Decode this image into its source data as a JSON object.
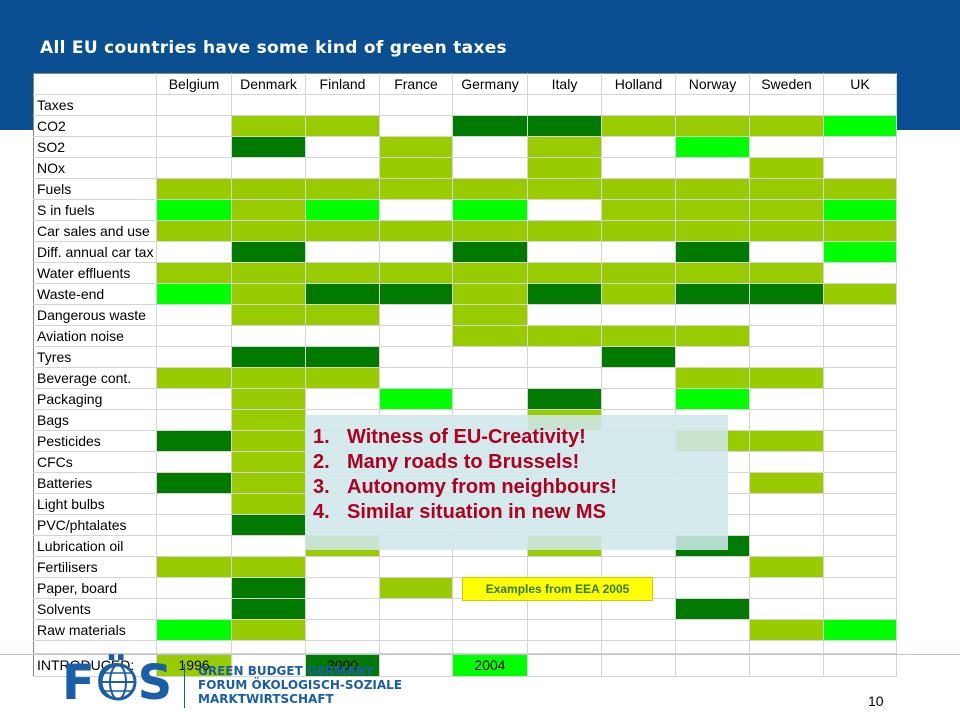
{
  "slide": {
    "title": "All EU countries have some kind of green taxes",
    "page_number": "10"
  },
  "colors": {
    "light_green": "#99cc00",
    "dark_green": "#007a00",
    "bright_green": "#00ff00",
    "header_blue": "#0b4f93",
    "overlay_text_red": "#b00020"
  },
  "table": {
    "corner_label": "",
    "countries": [
      "Belgium",
      "Denmark",
      "Finland",
      "France",
      "Germany",
      "Italy",
      "Holland",
      "Norway",
      "Sweden",
      "UK"
    ],
    "section_label": "Taxes",
    "legend_codes": {
      "0": "none",
      "1": "light green",
      "2": "dark green",
      "3": "bright green"
    },
    "rows": [
      {
        "label": "CO2",
        "cells": [
          0,
          1,
          1,
          0,
          2,
          2,
          1,
          1,
          1,
          3
        ]
      },
      {
        "label": "SO2",
        "cells": [
          0,
          2,
          0,
          1,
          0,
          1,
          0,
          3,
          0,
          0
        ]
      },
      {
        "label": "NOx",
        "cells": [
          0,
          0,
          0,
          1,
          0,
          1,
          0,
          0,
          1,
          0
        ]
      },
      {
        "label": "Fuels",
        "cells": [
          1,
          1,
          1,
          1,
          1,
          1,
          1,
          1,
          1,
          1
        ]
      },
      {
        "label": "S in fuels",
        "cells": [
          3,
          1,
          3,
          0,
          3,
          0,
          1,
          1,
          1,
          3
        ]
      },
      {
        "label": "Car sales and use",
        "cells": [
          1,
          1,
          1,
          1,
          1,
          1,
          1,
          1,
          1,
          1
        ]
      },
      {
        "label": "Diff. annual car tax",
        "cells": [
          0,
          2,
          0,
          0,
          2,
          0,
          0,
          2,
          0,
          3
        ]
      },
      {
        "label": "Water effluents",
        "cells": [
          1,
          1,
          1,
          1,
          1,
          1,
          1,
          1,
          1,
          0
        ]
      },
      {
        "label": "Waste-end",
        "cells": [
          3,
          1,
          2,
          2,
          1,
          2,
          1,
          2,
          2,
          1
        ]
      },
      {
        "label": "Dangerous waste",
        "cells": [
          0,
          1,
          1,
          0,
          1,
          0,
          0,
          0,
          0,
          0
        ]
      },
      {
        "label": "Aviation noise",
        "cells": [
          0,
          0,
          0,
          0,
          1,
          1,
          1,
          1,
          0,
          0
        ]
      },
      {
        "label": "Tyres",
        "cells": [
          0,
          2,
          2,
          0,
          0,
          0,
          2,
          0,
          0,
          0
        ]
      },
      {
        "label": "Beverage cont.",
        "cells": [
          1,
          1,
          1,
          0,
          0,
          0,
          0,
          1,
          1,
          0
        ]
      },
      {
        "label": "Packaging",
        "cells": [
          0,
          1,
          0,
          3,
          0,
          2,
          0,
          3,
          0,
          0
        ]
      },
      {
        "label": "Bags",
        "cells": [
          0,
          1,
          0,
          0,
          0,
          1,
          0,
          0,
          0,
          0
        ]
      },
      {
        "label": "Pesticides",
        "cells": [
          2,
          1,
          0,
          0,
          0,
          0,
          0,
          1,
          1,
          0
        ]
      },
      {
        "label": "CFCs",
        "cells": [
          0,
          1,
          0,
          0,
          0,
          0,
          0,
          0,
          0,
          0
        ]
      },
      {
        "label": "Batteries",
        "cells": [
          2,
          1,
          0,
          0,
          0,
          0,
          0,
          0,
          1,
          0
        ]
      },
      {
        "label": "Light bulbs",
        "cells": [
          0,
          1,
          0,
          0,
          0,
          0,
          0,
          0,
          0,
          0
        ]
      },
      {
        "label": "PVC/phtalates",
        "cells": [
          0,
          2,
          0,
          0,
          0,
          0,
          0,
          0,
          0,
          0
        ]
      },
      {
        "label": "Lubrication oil",
        "cells": [
          0,
          0,
          1,
          0,
          0,
          1,
          0,
          2,
          0,
          0
        ]
      },
      {
        "label": "Fertilisers",
        "cells": [
          1,
          1,
          0,
          0,
          0,
          0,
          0,
          0,
          1,
          0
        ]
      },
      {
        "label": "Paper, board",
        "cells": [
          0,
          2,
          0,
          1,
          0,
          0,
          0,
          0,
          0,
          0
        ]
      },
      {
        "label": "Solvents",
        "cells": [
          0,
          2,
          0,
          0,
          0,
          0,
          0,
          2,
          0,
          0
        ]
      },
      {
        "label": "Raw materials",
        "cells": [
          3,
          1,
          0,
          0,
          0,
          0,
          0,
          0,
          1,
          3
        ]
      }
    ],
    "introduced": {
      "label": "INTRODUCED:",
      "items": [
        {
          "text": "1996",
          "color": "light"
        },
        {
          "text": "",
          "color": "none"
        },
        {
          "text": "2000",
          "color": "dark"
        },
        {
          "text": "",
          "color": "none"
        },
        {
          "text": "2004",
          "color": "bright"
        },
        {
          "text": "",
          "color": "none"
        },
        {
          "text": "",
          "color": "none"
        },
        {
          "text": "",
          "color": "none"
        },
        {
          "text": "",
          "color": "none"
        },
        {
          "text": "",
          "color": "none"
        }
      ]
    }
  },
  "overlay": {
    "points": [
      {
        "num": "1.",
        "text": "Witness of EU-Creativity!"
      },
      {
        "num": "2.",
        "text": "Many roads to Brussels!"
      },
      {
        "num": "3.",
        "text": "Autonomy from neighbours!"
      },
      {
        "num": "4.",
        "text": "Similar situation in new MS"
      }
    ]
  },
  "examples_note": "Examples from EEA 2005",
  "footer": {
    "logo_text": "FÖS",
    "org_lines": [
      "GREEN BUDGET GERMANY",
      "FORUM ÖKOLOGISCH-SOZIALE",
      "MARKTWIRTSCHAFT"
    ]
  }
}
